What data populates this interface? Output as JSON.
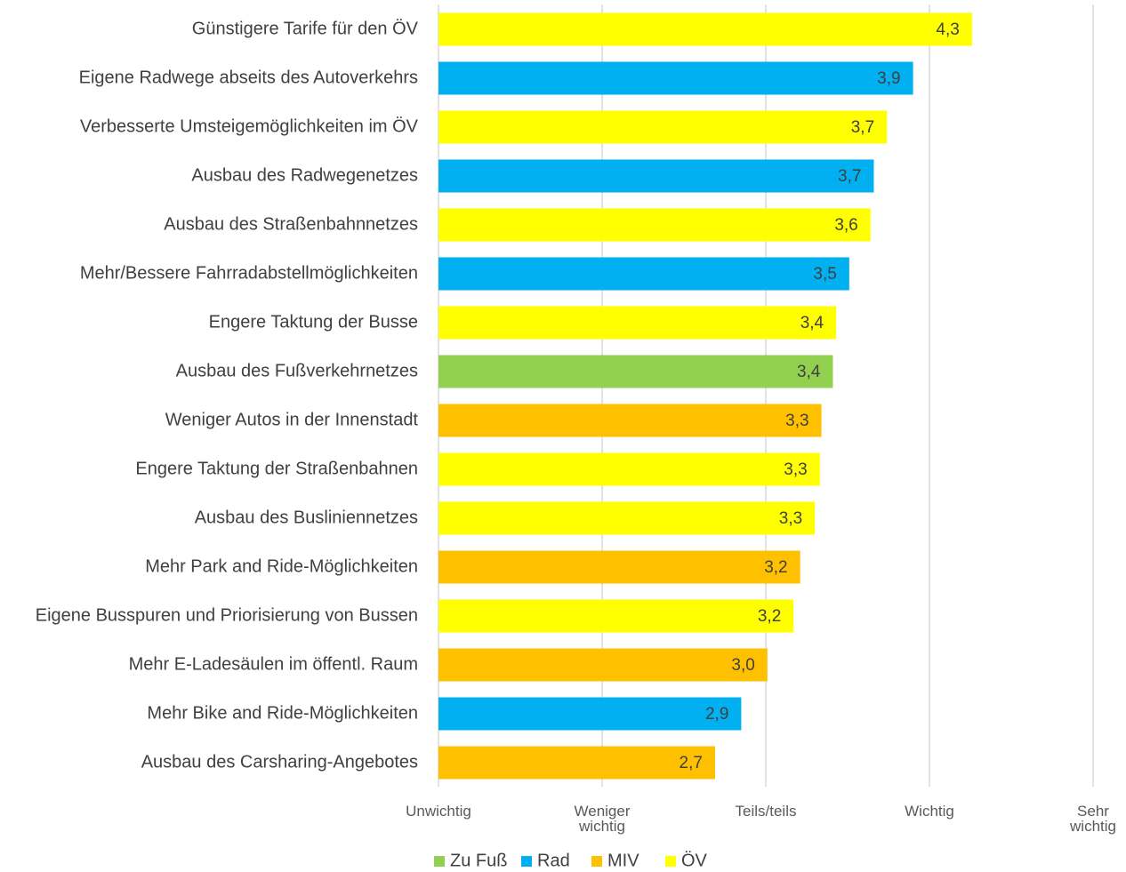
{
  "chart_data": {
    "type": "hbar",
    "categories": [
      "Günstigere Tarife für den ÖV",
      "Eigene Radwege abseits des Autoverkehrs",
      "Verbesserte Umsteigemöglichkeiten im ÖV",
      "Ausbau des Radwegenetzes",
      "Ausbau des Straßenbahnnetzes",
      "Mehr/Bessere Fahrradabstellmöglichkeiten",
      "Engere Taktung der Busse",
      "Ausbau des Fußverkehrnetzes",
      "Weniger Autos in der Innenstadt",
      "Engere Taktung der Straßenbahnen",
      "Ausbau des Busliniennetzes",
      "Mehr Park and Ride-Möglichkeiten",
      "Eigene Busspuren und Priorisierung von Bussen",
      "Mehr E-Ladesäulen im öffentl. Raum",
      "Mehr Bike and Ride-Möglichkeiten",
      "Ausbau des Carsharing-Angebotes"
    ],
    "series": [
      {
        "name": "Zu Fuß",
        "color": "#92d050",
        "values": [
          null,
          null,
          null,
          null,
          null,
          null,
          null,
          3.41,
          null,
          null,
          null,
          null,
          null,
          null,
          null,
          null
        ],
        "value_labels": [
          null,
          null,
          null,
          null,
          null,
          null,
          null,
          "3,4",
          null,
          null,
          null,
          null,
          null,
          null,
          null,
          null
        ]
      },
      {
        "name": "Rad",
        "color": "#00b0f0",
        "values": [
          null,
          3.9,
          null,
          3.66,
          null,
          3.51,
          null,
          null,
          null,
          null,
          null,
          null,
          null,
          null,
          2.85,
          null
        ],
        "value_labels": [
          null,
          "3,9",
          null,
          "3,7",
          null,
          "3,5",
          null,
          null,
          null,
          null,
          null,
          null,
          null,
          null,
          "2,9",
          null
        ]
      },
      {
        "name": "MIV",
        "color": "#ffc000",
        "values": [
          null,
          null,
          null,
          null,
          null,
          null,
          null,
          null,
          3.34,
          null,
          null,
          3.21,
          null,
          3.01,
          null,
          2.69
        ],
        "value_labels": [
          null,
          null,
          null,
          null,
          null,
          null,
          null,
          null,
          "3,3",
          null,
          null,
          "3,2",
          null,
          "3,0",
          null,
          "2,7"
        ]
      },
      {
        "name": "ÖV",
        "color": "#ffff00",
        "values": [
          4.26,
          null,
          3.74,
          null,
          3.64,
          null,
          3.43,
          null,
          null,
          3.33,
          3.3,
          null,
          3.17,
          null,
          null,
          null
        ],
        "value_labels": [
          "4,3",
          null,
          "3,7",
          null,
          "3,6",
          null,
          "3,4",
          null,
          null,
          "3,3",
          "3,3",
          null,
          "3,2",
          null,
          null,
          null
        ]
      }
    ],
    "xlim": [
      1,
      5
    ],
    "xticks": [
      {
        "value": 1,
        "label": "Unwichtig"
      },
      {
        "value": 2,
        "label": "Weniger\nwichtig"
      },
      {
        "value": 3,
        "label": "Teils/teils"
      },
      {
        "value": 4,
        "label": "Wichtig"
      },
      {
        "value": 5,
        "label": "Sehr\nwichtig"
      }
    ],
    "grid": true,
    "legend": "bottom"
  }
}
